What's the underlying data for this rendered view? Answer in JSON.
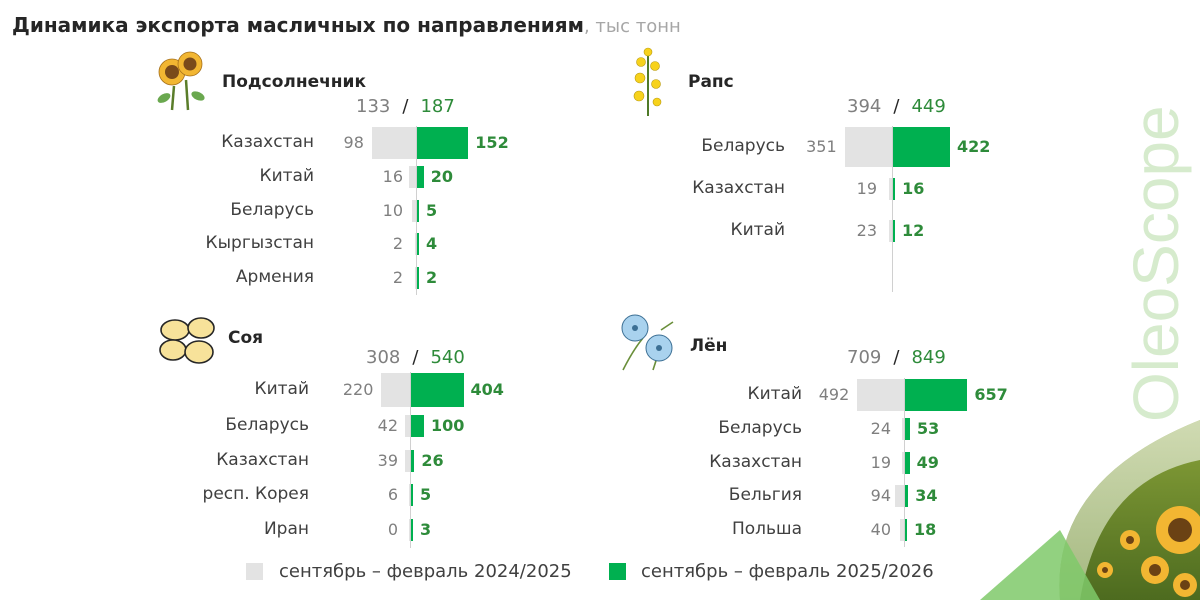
{
  "title": {
    "main": "Динамика экспорта масличных по направлениям",
    "unit": ", тыс тонн"
  },
  "brand": "OleoScope",
  "legend": {
    "prev": "сентябрь – февраль 2024/2025",
    "curr": "сентябрь – февраль 2025/2026"
  },
  "colors": {
    "prev": "#e3e3e3",
    "curr": "#00b050",
    "curr_text": "#2e8b3a",
    "prev_text": "#7f7f7f"
  },
  "chart_data": [
    {
      "type": "bar",
      "title": "Подсолнечник",
      "icon": "sunflower-icon",
      "total_prev": 133,
      "total_curr": 187,
      "categories": [
        "Казахстан",
        "Китай",
        "Беларусь",
        "Кыргызстан",
        "Армения"
      ],
      "series": [
        {
          "name": "сентябрь – февраль 2024/2025",
          "values": [
            98,
            16,
            10,
            2,
            2
          ]
        },
        {
          "name": "сентябрь – февраль 2025/2026",
          "values": [
            152,
            20,
            5,
            4,
            2
          ]
        }
      ]
    },
    {
      "type": "bar",
      "title": "Рапс",
      "icon": "rapeseed-icon",
      "total_prev": 394,
      "total_curr": 449,
      "categories": [
        "Беларусь",
        "Казахстан",
        "Китай"
      ],
      "series": [
        {
          "name": "сентябрь – февраль 2024/2025",
          "values": [
            351,
            19,
            23
          ]
        },
        {
          "name": "сентябрь – февраль 2025/2026",
          "values": [
            422,
            16,
            12
          ]
        }
      ]
    },
    {
      "type": "bar",
      "title": "Соя",
      "icon": "soybean-icon",
      "total_prev": 308,
      "total_curr": 540,
      "categories": [
        "Китай",
        "Беларусь",
        "Казахстан",
        "респ. Корея",
        "Иран"
      ],
      "series": [
        {
          "name": "сентябрь – февраль 2024/2025",
          "values": [
            220,
            42,
            39,
            6,
            0
          ]
        },
        {
          "name": "сентябрь – февраль 2025/2026",
          "values": [
            404,
            100,
            26,
            5,
            3
          ]
        }
      ]
    },
    {
      "type": "bar",
      "title": "Лён",
      "icon": "flax-icon",
      "total_prev": 709,
      "total_curr": 849,
      "categories": [
        "Китай",
        "Беларусь",
        "Казахстан",
        "Бельгия",
        "Польша"
      ],
      "series": [
        {
          "name": "сентябрь – февраль 2024/2025",
          "values": [
            492,
            24,
            19,
            94,
            40
          ]
        },
        {
          "name": "сентябрь – февраль 2025/2026",
          "values": [
            657,
            53,
            49,
            34,
            18
          ]
        }
      ]
    }
  ]
}
